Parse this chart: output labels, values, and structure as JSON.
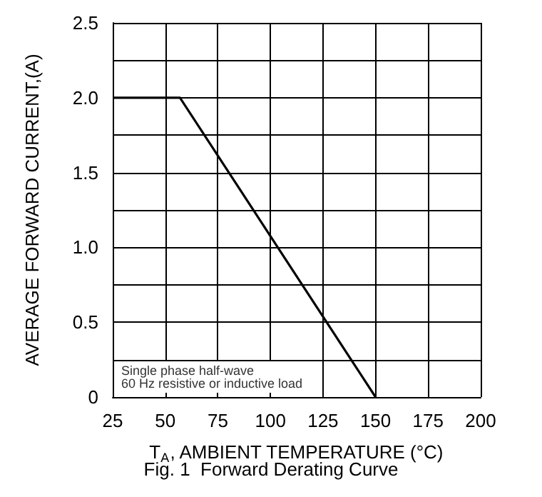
{
  "chart_data": {
    "type": "line",
    "title": "Fig. 1  Forward Derating Curve",
    "xlabel": "T$_{A}$, AMBIENT TEMPERATURE (°C)",
    "ylabel": "AVERAGE FORWARD CURRENT,(A)",
    "annotations": [
      "Single phase half-wave\n60 Hz resistive or inductive load"
    ],
    "x": [
      25,
      57,
      150
    ],
    "series": [
      {
        "color": "#000000",
        "values": [
          2.0,
          2.0,
          0
        ]
      }
    ],
    "xlim": [
      25,
      200
    ],
    "xticks": [
      25,
      50,
      75,
      100,
      125,
      150,
      175,
      200
    ],
    "ylim": [
      0,
      2.5
    ],
    "yticks": [
      0,
      {
        "value": 0.25,
        "label": null
      },
      0.5,
      {
        "value": 0.75,
        "label": null
      },
      {
        "value": 1.0,
        "label": "1.0"
      },
      {
        "value": 1.25,
        "label": null
      },
      1.5,
      {
        "value": 1.75,
        "label": null
      },
      {
        "value": 2.0,
        "label": "2.0"
      },
      {
        "value": 2.25,
        "label": null
      },
      2.5
    ],
    "grid": true,
    "marker": "none",
    "line_style": "solid"
  }
}
